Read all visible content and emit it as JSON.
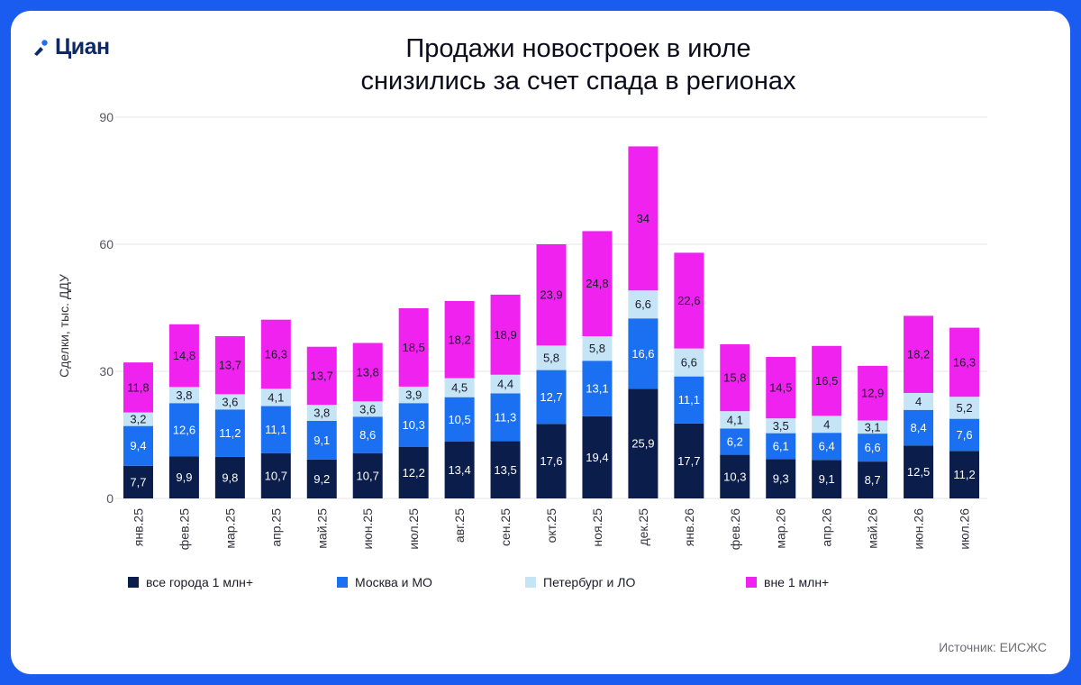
{
  "brand": {
    "name": "Циан"
  },
  "title_line1": "Продажи новостроек в июле",
  "title_line2": "снизились за счет спада в регионах",
  "source": "Источник: ЕИСЖС",
  "colors": {
    "background": "#1a5cf0",
    "card": "#ffffff",
    "cities": "#0b1d4b",
    "moscow": "#1a70f0",
    "piter": "#c5e4f6",
    "outside": "#f022f0"
  },
  "chart_data": {
    "type": "bar",
    "stacked": true,
    "ylabel": "Сделки, тыс. ДДУ",
    "ylim": [
      0,
      90
    ],
    "yticks": [
      0,
      30,
      60,
      90
    ],
    "grid": true,
    "legend_position": "bottom",
    "categories": [
      "янв.25",
      "фев.25",
      "мар.25",
      "апр.25",
      "май.25",
      "июн.25",
      "июл.25",
      "авг.25",
      "сен.25",
      "окт.25",
      "ноя.25",
      "дек.25",
      "янв.26",
      "фев.26",
      "мар.26",
      "апр.26",
      "май.26",
      "июн.26",
      "июл.26"
    ],
    "series": [
      {
        "name": "все города 1 млн+",
        "color": "#0b1d4b",
        "label_color": "#ffffff",
        "values": [
          7.7,
          9.9,
          9.8,
          10.7,
          9.2,
          10.7,
          12.2,
          13.4,
          13.5,
          17.6,
          19.4,
          25.9,
          17.7,
          10.3,
          9.3,
          9.1,
          8.7,
          12.5,
          11.2
        ]
      },
      {
        "name": "Москва и МО",
        "color": "#1a70f0",
        "label_color": "#ffffff",
        "values": [
          9.4,
          12.6,
          11.2,
          11.1,
          9.1,
          8.6,
          10.3,
          10.5,
          11.3,
          12.7,
          13.1,
          16.6,
          11.1,
          6.2,
          6.1,
          6.4,
          6.6,
          8.4,
          7.6
        ]
      },
      {
        "name": "Петербург и ЛО",
        "color": "#c5e4f6",
        "label_color": "#1b1b28",
        "values": [
          3.2,
          3.8,
          3.6,
          4.1,
          3.8,
          3.6,
          3.9,
          4.5,
          4.4,
          5.8,
          5.8,
          6.6,
          6.6,
          4.1,
          3.5,
          4,
          3.1,
          4,
          5.2
        ]
      },
      {
        "name": "вне 1 млн+",
        "color": "#f022f0",
        "label_color": "#1b1b28",
        "values": [
          11.8,
          14.8,
          13.7,
          16.3,
          13.7,
          13.8,
          18.5,
          18.2,
          18.9,
          23.9,
          24.8,
          34,
          22.6,
          15.8,
          14.5,
          16.5,
          12.9,
          18.2,
          16.3
        ]
      }
    ]
  }
}
